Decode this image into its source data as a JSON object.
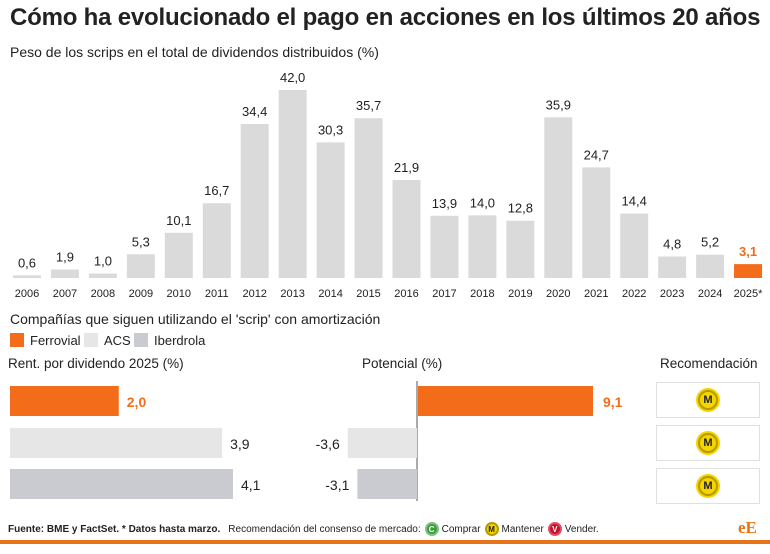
{
  "title": "Cómo ha evolucionado el pago en acciones en los últimos 20 años",
  "subtitle": "Peso de los scrips en el total de dividendos distribuidos (%)",
  "chart_data": [
    {
      "type": "bar",
      "categories": [
        "2006",
        "2007",
        "2008",
        "2009",
        "2010",
        "2011",
        "2012",
        "2013",
        "2014",
        "2015",
        "2016",
        "2017",
        "2018",
        "2019",
        "2020",
        "2021",
        "2022",
        "2023",
        "2024",
        "2025*"
      ],
      "values": [
        0.6,
        1.9,
        1.0,
        5.3,
        10.1,
        16.7,
        34.4,
        42.0,
        30.3,
        35.7,
        21.9,
        13.9,
        14.0,
        12.8,
        35.9,
        24.7,
        14.4,
        4.8,
        5.2,
        3.1
      ],
      "value_labels": [
        "0,6",
        "1,9",
        "1,0",
        "5,3",
        "10,1",
        "16,7",
        "34,4",
        "42,0",
        "30,3",
        "35,7",
        "21,9",
        "13,9",
        "14,0",
        "12,8",
        "35,9",
        "24,7",
        "14,4",
        "4,8",
        "5,2",
        "3,1"
      ],
      "highlight_index": 19,
      "colors": {
        "default": "#dadada",
        "highlight": "#f26c1a"
      },
      "ylim": [
        0,
        42
      ]
    },
    {
      "type": "bar",
      "orientation": "horizontal",
      "title": "Rent. por dividendo 2025 (%)",
      "categories": [
        "Ferrovial",
        "ACS",
        "Iberdrola"
      ],
      "values": [
        2.0,
        3.9,
        4.1
      ],
      "value_labels": [
        "2,0",
        "3,9",
        "4,1"
      ]
    },
    {
      "type": "bar",
      "orientation": "horizontal",
      "title": "Potencial (%)",
      "categories": [
        "Ferrovial",
        "ACS",
        "Iberdrola"
      ],
      "values": [
        9.1,
        -3.6,
        -3.1
      ],
      "value_labels": [
        "9,1",
        "-3,6",
        "-3,1"
      ]
    }
  ],
  "section2": {
    "title": "Compañías que siguen utilizando el 'scrip' con amortización",
    "legend": [
      {
        "label": "Ferrovial",
        "color": "#f26c1a"
      },
      {
        "label": "ACS",
        "color": "#e6e6e6"
      },
      {
        "label": "Iberdrola",
        "color": "#c9cbd0"
      }
    ],
    "headers": {
      "yield": "Rent. por dividendo 2025 (%)",
      "potential": "Potencial (%)",
      "recommendation": "Recomendación"
    },
    "recommendations": [
      "M",
      "M",
      "M"
    ]
  },
  "footer": {
    "source": "Fuente: BME y FactSet. * Datos hasta marzo.",
    "consensus": "Recomendación del consenso de mercado:",
    "buy_letter": "C",
    "buy": "Comprar",
    "hold_letter": "M",
    "hold": "Mantener",
    "sell_letter": "V",
    "sell": "Vender.",
    "brand": "eE"
  }
}
